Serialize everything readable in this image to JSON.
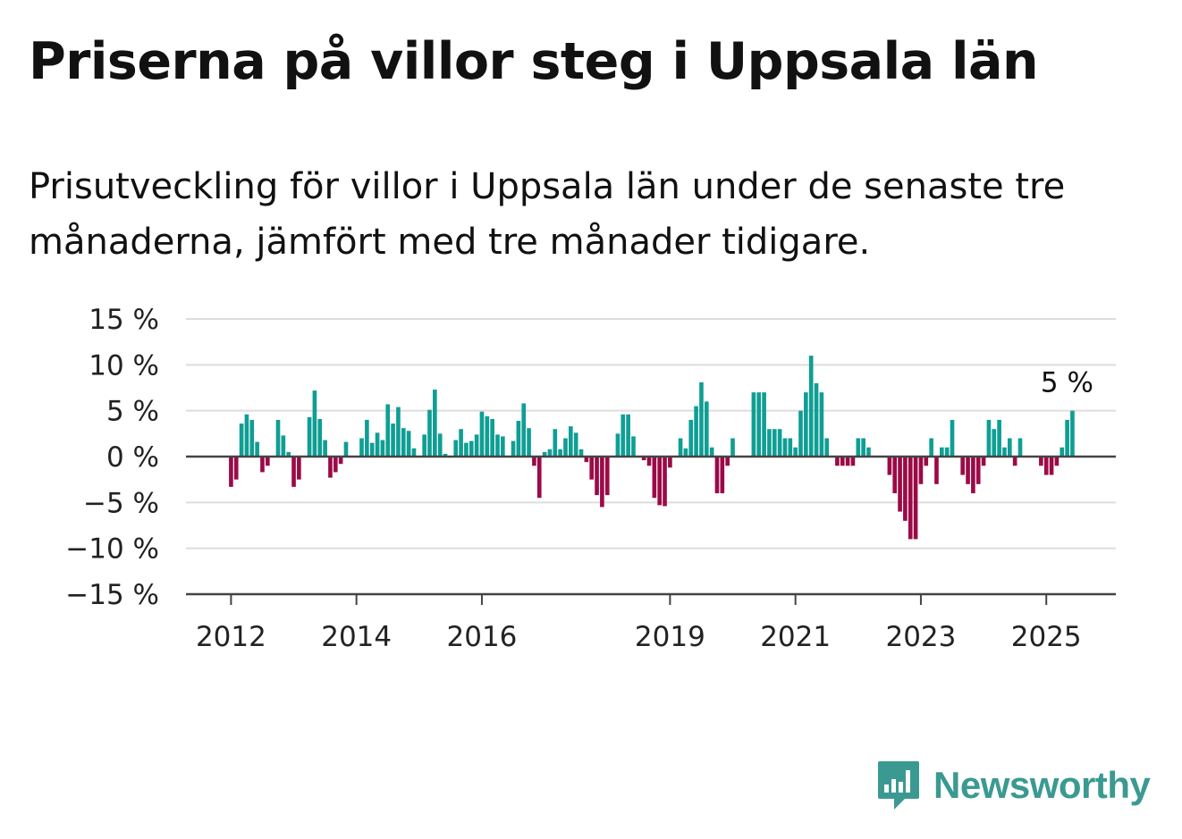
{
  "title": "Priserna på villor steg i Uppsala län",
  "subtitle": "Prisutveckling för villor i Uppsala län under de senaste tre månaderna, jämfört med tre månader tidigare.",
  "brand": {
    "name": "Newsworthy",
    "color": "#3a9a91",
    "icon": "newsworthy-logo-icon"
  },
  "colors": {
    "positive": "#0f9e94",
    "negative": "#9b0a47",
    "grid": "#dddddd",
    "zero_line": "#444444"
  },
  "chart_data": {
    "type": "bar",
    "ylim": [
      -15,
      15
    ],
    "y_ticks": [
      15,
      10,
      5,
      0,
      -5,
      -10,
      -15
    ],
    "y_tick_labels": [
      "15 %",
      "10 %",
      "5 %",
      "0 %",
      "−5 %",
      "−10 %",
      "−15 %"
    ],
    "x_ticks": [
      2012,
      2014,
      2016,
      2019,
      2021,
      2023,
      2025
    ],
    "x_tick_labels": [
      "2012",
      "2014",
      "2016",
      "2019",
      "2021",
      "2023",
      "2025"
    ],
    "start": "2012-01",
    "grid": true,
    "annotation": {
      "text": "5 %",
      "x": "2025-06",
      "value": 5
    },
    "series": [
      {
        "frequency": "monthly",
        "values": [
          -3.3,
          -2.5,
          3.6,
          4.6,
          4.0,
          1.6,
          -1.7,
          -1.0,
          0,
          4.0,
          2.3,
          0.5,
          -3.3,
          -2.5,
          0,
          4.3,
          7.2,
          4.1,
          1.8,
          -2.3,
          -1.7,
          -0.8,
          1.6,
          0,
          0,
          2.0,
          4.0,
          1.5,
          2.6,
          1.8,
          5.7,
          3.6,
          5.4,
          3.1,
          2.8,
          0.9,
          0,
          2.4,
          5.1,
          7.3,
          2.5,
          0.3,
          0,
          1.8,
          3.0,
          1.5,
          1.7,
          2.4,
          4.9,
          4.4,
          4.1,
          2.4,
          2.2,
          0,
          1.7,
          3.9,
          5.8,
          3.1,
          -1.0,
          -4.5,
          0.5,
          0.8,
          3.0,
          0.8,
          2.0,
          3.3,
          2.6,
          0.8,
          -0.6,
          -2.5,
          -4.2,
          -5.5,
          -4.2,
          0,
          2.5,
          4.6,
          4.6,
          2.2,
          0,
          -0.4,
          -1.0,
          -4.5,
          -5.3,
          -5.4,
          -1.2,
          0,
          2.0,
          0.9,
          4.0,
          5.5,
          8.1,
          6.0,
          1.0,
          -4.0,
          -4.0,
          -1.0,
          2.0,
          0,
          0,
          0,
          7.0,
          7.0,
          7.0,
          3.0,
          3.0,
          3.0,
          2.0,
          2.0,
          1.0,
          5.0,
          7.0,
          11.0,
          8.0,
          7.0,
          2.0,
          0,
          -1.0,
          -1.0,
          -1.0,
          -1.0,
          2.0,
          2.0,
          1.0,
          0,
          0,
          0,
          -2.0,
          -4.0,
          -6.0,
          -7.0,
          -9.0,
          -9.0,
          -3.0,
          -1.0,
          2.0,
          -3.0,
          1.0,
          1.0,
          4.0,
          0,
          -2.0,
          -3.0,
          -4.0,
          -3.0,
          -1.0,
          4.0,
          3.0,
          4.0,
          1.0,
          2.0,
          -1.0,
          2.0,
          0,
          0,
          0,
          -1.0,
          -2.0,
          -2.0,
          -1.0,
          1.0,
          4.0,
          5.0
        ]
      }
    ]
  }
}
